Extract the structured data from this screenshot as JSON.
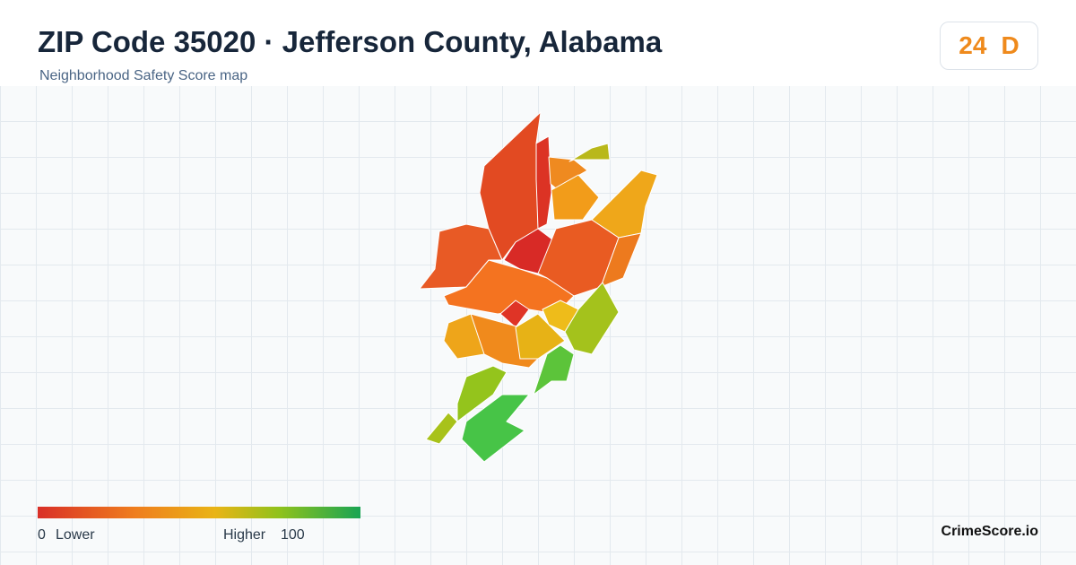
{
  "header": {
    "title": "ZIP Code 35020 · Jefferson County, Alabama",
    "subtitle": "Neighborhood Safety Score map"
  },
  "score": {
    "value": "24",
    "grade": "D"
  },
  "legend": {
    "min": "0",
    "min_label": "Lower",
    "max_label": "Higher",
    "max": "100"
  },
  "brand": "CrimeScore.io"
}
